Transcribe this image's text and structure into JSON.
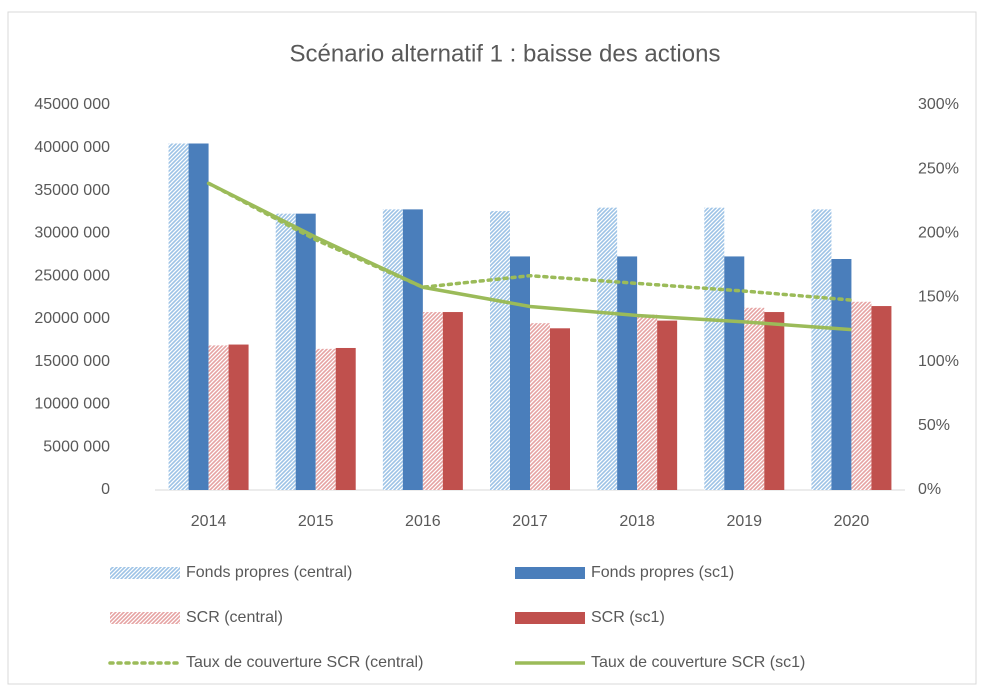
{
  "chart_data": {
    "type": "bar",
    "title": "Scénario alternatif 1 : baisse des actions",
    "categories": [
      "2014",
      "2015",
      "2016",
      "2017",
      "2018",
      "2019",
      "2020"
    ],
    "ylim": [
      0,
      45000000
    ],
    "yticks": [
      {
        "value": 45000000,
        "label": "45000 000"
      },
      {
        "value": 40000000,
        "label": "40000 000"
      },
      {
        "value": 35000000,
        "label": "35000 000"
      },
      {
        "value": 30000000,
        "label": "30000 000"
      },
      {
        "value": 25000000,
        "label": "25000 000"
      },
      {
        "value": 20000000,
        "label": "20000 000"
      },
      {
        "value": 15000000,
        "label": "15000 000"
      },
      {
        "value": 10000000,
        "label": "10000 000"
      },
      {
        "value": 5000000,
        "label": "5000 000"
      },
      0
    ],
    "y2lim": [
      0,
      300
    ],
    "y2ticks": [
      {
        "value": 300,
        "label": "300%"
      },
      {
        "value": 250,
        "label": "250%"
      },
      {
        "value": 200,
        "label": "200%"
      },
      {
        "value": 150,
        "label": "150%"
      },
      {
        "value": 100,
        "label": "100%"
      },
      {
        "value": 50,
        "label": "50%"
      },
      {
        "value": 0,
        "label": "0%"
      }
    ],
    "series": [
      {
        "name": "Fonds propres (central)",
        "type": "bar",
        "color": "#9dc3e6",
        "pattern": "hatched",
        "values": [
          40500000,
          32300000,
          32800000,
          32600000,
          33000000,
          33000000,
          32800000
        ]
      },
      {
        "name": "Fonds propres (sc1)",
        "type": "bar",
        "color": "#4a7ebb",
        "values": [
          40500000,
          32300000,
          32800000,
          27300000,
          27300000,
          27300000,
          27000000
        ]
      },
      {
        "name": "SCR (central)",
        "type": "bar",
        "color": "#e6a3a3",
        "pattern": "hatched",
        "values": [
          16900000,
          16500000,
          20800000,
          19500000,
          20500000,
          21300000,
          22000000
        ]
      },
      {
        "name": "SCR (sc1)",
        "type": "bar",
        "color": "#c0504d",
        "values": [
          17000000,
          16600000,
          20800000,
          18900000,
          19800000,
          20800000,
          21500000
        ]
      },
      {
        "name": "Taux de couverture SCR (central)",
        "type": "line",
        "axis": "y2",
        "color": "#9bbb59",
        "dash": "dotted",
        "values": [
          239,
          195,
          158,
          167,
          161,
          155,
          148
        ]
      },
      {
        "name": "Taux de couverture SCR (sc1)",
        "type": "line",
        "axis": "y2",
        "color": "#9bbb59",
        "values": [
          239,
          197,
          158,
          143,
          136,
          131,
          125
        ]
      }
    ]
  }
}
